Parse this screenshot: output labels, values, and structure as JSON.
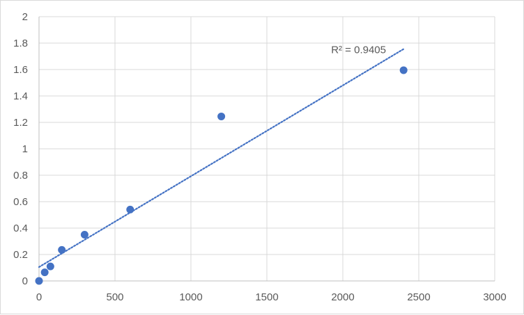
{
  "chart_data": {
    "type": "scatter",
    "title": "",
    "xlabel": "",
    "ylabel": "",
    "xlim": [
      0,
      3000
    ],
    "ylim": [
      0,
      2
    ],
    "x_ticks": [
      0,
      500,
      1000,
      1500,
      2000,
      2500,
      3000
    ],
    "y_ticks": [
      0,
      0.2,
      0.4,
      0.6,
      0.8,
      1,
      1.2,
      1.4,
      1.6,
      1.8,
      2
    ],
    "x_tick_labels": [
      "0",
      "500",
      "1000",
      "1500",
      "2000",
      "2500",
      "3000"
    ],
    "y_tick_labels": [
      "0",
      "0.2",
      "0.4",
      "0.6",
      "0.8",
      "1",
      "1.2",
      "1.4",
      "1.6",
      "1.8",
      "2"
    ],
    "grid": true,
    "legend": "none",
    "series": [
      {
        "x": [
          0,
          37.5,
          75,
          150,
          300,
          600,
          1200,
          2400
        ],
        "y": [
          0,
          0.065,
          0.11,
          0.235,
          0.35,
          0.54,
          1.245,
          1.595
        ],
        "color": "#4472c4",
        "marker": "circle"
      }
    ],
    "trendline": {
      "kind": "linear",
      "style": "dotted",
      "color": "#4472c4",
      "x_range": [
        0,
        2400
      ],
      "y_start": 0.105,
      "y_end": 1.755,
      "annotation": "R² = 0.9405"
    }
  }
}
